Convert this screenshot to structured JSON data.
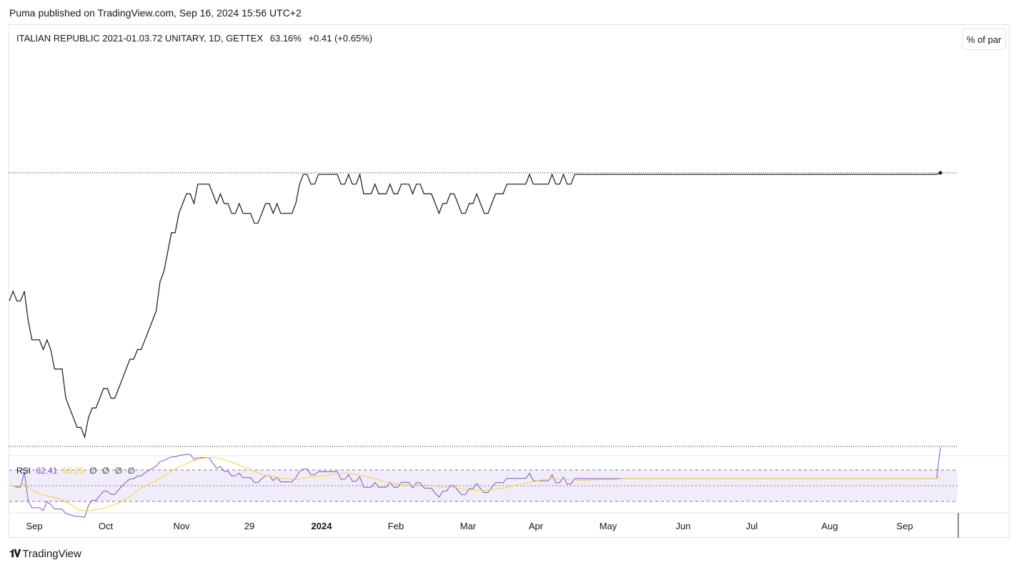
{
  "caption": "Puma published on TradingView.com, Sep 16, 2024 15:56 UTC+2",
  "legend": {
    "symbol": "ITALIAN REPUBLIC 2021-01.03.72 UNITARY, 1D, GETTEX",
    "last": "63.16%",
    "change": "+0.41 (+0.65%)"
  },
  "scale_button": "% of par",
  "rsi_legend": {
    "name": "RSI",
    "rsi_value": "62.41",
    "ma_value": "53.25",
    "extra_values": [
      "∅",
      "∅",
      "∅",
      "∅"
    ]
  },
  "brand": {
    "name": "TradingView"
  },
  "colors": {
    "price_line": "#131722",
    "rsi_line": "#7e57c2",
    "rsi_ma": "#f5d33f",
    "rsi_band": "#f1ecfa",
    "grid": "#e0e3eb"
  },
  "chart_data": {
    "type": "line",
    "price": {
      "unit": "% of par",
      "dotted_levels": [
        "high",
        "low"
      ],
      "values": [
        50,
        51,
        50,
        50,
        51,
        48,
        46,
        46,
        46,
        45,
        46,
        45,
        43,
        43,
        43,
        40,
        39,
        38,
        37,
        37,
        36,
        38,
        39,
        39,
        40,
        41,
        41,
        40,
        40,
        41,
        42,
        43,
        44,
        44,
        45,
        45,
        46,
        47,
        48,
        49,
        52,
        53,
        55,
        57,
        57,
        59,
        60,
        61,
        61,
        60,
        62,
        62,
        62,
        62,
        61,
        60,
        61,
        60,
        60,
        59,
        59,
        60,
        59,
        59,
        59,
        58,
        58,
        59,
        60,
        60,
        59,
        60,
        59,
        59,
        59,
        59,
        60,
        62,
        63,
        63,
        62,
        62,
        63,
        63,
        63,
        63,
        63,
        63,
        62,
        62,
        63,
        62,
        62,
        63,
        61,
        61,
        61,
        62,
        61,
        61,
        61,
        62,
        61,
        61,
        62,
        62,
        62,
        61,
        62,
        62,
        61,
        61,
        61,
        60,
        59,
        60,
        60,
        61,
        61,
        60,
        59,
        59,
        60,
        60,
        61,
        60,
        59,
        59,
        60,
        61,
        61,
        61,
        62,
        62,
        62,
        62,
        62,
        62,
        63,
        62,
        62,
        62,
        62,
        62,
        63,
        62,
        62,
        63,
        62,
        62,
        63,
        63,
        63,
        63,
        63,
        63,
        63,
        63,
        63,
        63,
        63,
        63,
        63,
        63,
        63,
        63,
        63,
        63,
        63,
        63,
        63,
        63,
        63,
        63,
        63,
        63,
        63,
        63,
        63,
        63,
        63,
        63,
        63,
        63,
        63,
        63,
        63,
        63,
        63,
        63,
        63,
        63,
        63,
        63,
        63,
        63,
        63,
        63,
        63,
        63,
        63,
        63,
        63,
        63,
        63,
        63,
        63,
        63,
        63,
        63,
        63,
        63,
        63,
        63,
        63,
        63,
        63,
        63,
        63,
        63,
        63,
        63,
        63,
        63,
        63,
        63,
        63,
        63,
        63,
        63,
        63,
        63,
        63,
        63,
        63,
        63,
        63,
        63,
        63,
        63,
        63,
        63,
        63,
        63,
        63,
        63,
        63,
        63.16
      ]
    },
    "rsi": {
      "name": "RSI",
      "last": 62.41,
      "ma_last": 53.25,
      "bands": [
        30,
        70
      ]
    },
    "x_ticks": [
      "Sep",
      "Oct",
      "Nov",
      "29",
      "2024",
      "Feb",
      "Mar",
      "Apr",
      "May",
      "Jun",
      "Jul",
      "Aug",
      "Sep"
    ],
    "x_tick_bold": "2024"
  }
}
